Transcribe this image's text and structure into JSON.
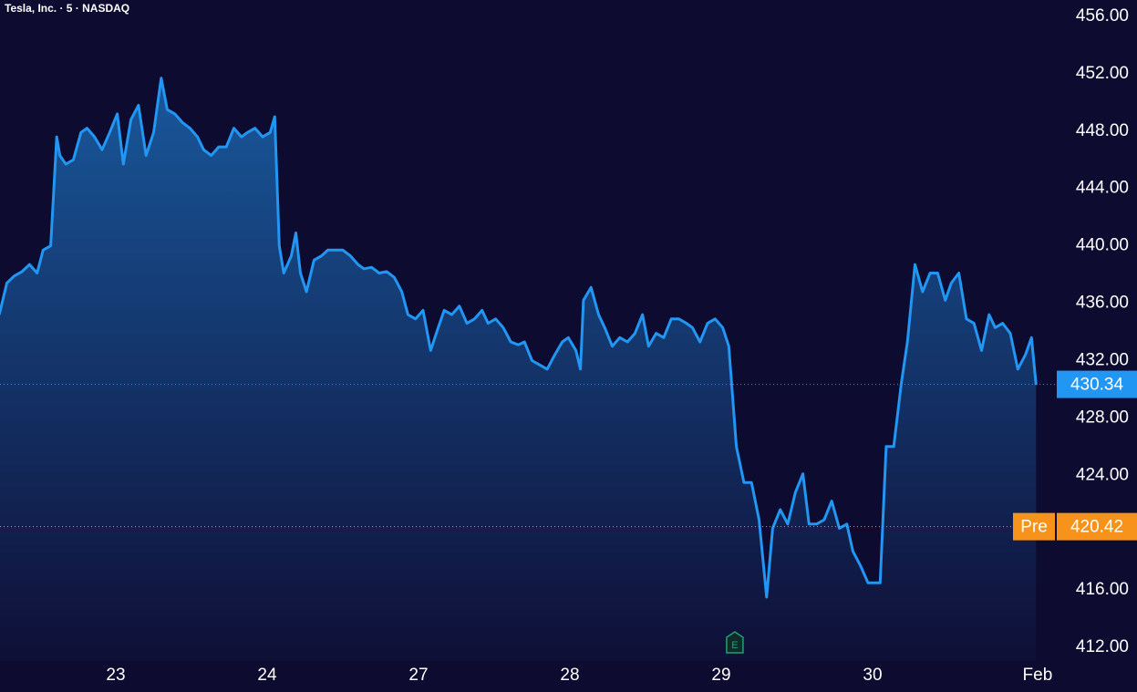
{
  "chart_data": {
    "type": "area",
    "title": "Tesla, Inc. · 5 · NASDAQ",
    "x": [
      -0.77,
      -0.72,
      -0.67,
      -0.62,
      -0.57,
      -0.52,
      -0.48,
      -0.43,
      -0.39,
      -0.37,
      -0.33,
      -0.28,
      -0.23,
      -0.19,
      -0.14,
      -0.09,
      -0.04,
      0.01,
      0.05,
      0.1,
      0.15,
      0.2,
      0.25,
      0.3,
      0.34,
      0.39,
      0.44,
      0.49,
      0.54,
      0.58,
      0.63,
      0.68,
      0.73,
      0.78,
      0.83,
      0.87,
      0.92,
      0.97,
      1.02,
      1.05,
      1.08,
      1.11,
      1.16,
      1.19,
      1.22,
      1.26,
      1.31,
      1.36,
      1.4,
      1.45,
      1.5,
      1.55,
      1.6,
      1.64,
      1.69,
      1.74,
      1.79,
      1.84,
      1.89,
      1.93,
      1.98,
      2.03,
      2.08,
      2.13,
      2.17,
      2.22,
      2.27,
      2.32,
      2.37,
      2.42,
      2.46,
      2.51,
      2.56,
      2.61,
      2.66,
      2.7,
      2.75,
      2.8,
      2.85,
      2.9,
      2.95,
      2.99,
      3.04,
      3.07,
      3.09,
      3.14,
      3.19,
      3.23,
      3.28,
      3.33,
      3.38,
      3.43,
      3.48,
      3.52,
      3.57,
      3.62,
      3.67,
      3.72,
      3.77,
      3.81,
      3.86,
      3.91,
      3.96,
      4.01,
      4.05,
      4.1,
      4.15,
      4.2,
      4.25,
      4.3,
      4.34,
      4.39,
      4.44,
      4.49,
      4.54,
      4.58,
      4.63,
      4.68,
      4.73,
      4.78,
      4.83,
      4.87,
      4.92,
      4.97,
      5.02,
      5.05,
      5.09,
      5.14,
      5.19,
      5.23,
      5.28,
      5.33,
      5.38,
      5.43,
      5.48,
      5.52,
      5.57,
      5.62,
      5.67,
      5.72,
      5.77,
      5.81,
      5.86,
      5.91,
      5.96,
      6.01,
      6.05,
      6.08
    ],
    "series": [
      {
        "color": "#2196f3",
        "values": [
          435.2,
          437.4,
          437.9,
          438.2,
          438.7,
          438.1,
          439.7,
          440,
          447.6,
          446.3,
          445.7,
          446,
          447.9,
          448.2,
          447.6,
          446.7,
          447.9,
          449.2,
          445.7,
          448.8,
          449.8,
          446.3,
          447.9,
          451.7,
          449.5,
          449.2,
          448.6,
          448.2,
          447.6,
          446.7,
          446.3,
          446.9,
          446.9,
          448.2,
          447.6,
          447.9,
          448.2,
          447.6,
          447.9,
          449.0,
          440,
          438.1,
          439.3,
          440.9,
          438.1,
          436.8,
          439,
          439.3,
          439.7,
          439.7,
          439.7,
          439.3,
          438.7,
          438.4,
          438.5,
          438.1,
          438.2,
          437.8,
          436.8,
          435.2,
          434.9,
          435.5,
          432.7,
          434.3,
          435.5,
          435.2,
          435.8,
          434.6,
          434.9,
          435.5,
          434.6,
          434.9,
          434.3,
          433.3,
          433.1,
          433.3,
          432.0,
          431.7,
          431.4,
          432.4,
          433.3,
          433.6,
          432.7,
          431.4,
          436.2,
          437.1,
          435.2,
          434.3,
          433,
          433.6,
          433.3,
          433.9,
          435.2,
          433,
          433.9,
          433.6,
          434.9,
          434.9,
          434.6,
          434.3,
          433.3,
          434.6,
          434.9,
          434.3,
          433,
          426,
          423.5,
          423.5,
          420.9,
          415.5,
          420.3,
          421.6,
          420.6,
          422.8,
          424.1,
          420.6,
          420.6,
          420.9,
          422.2,
          420.3,
          420.6,
          418.7,
          417.7,
          416.5,
          416.5,
          416.5,
          426,
          426,
          430.4,
          433.3,
          438.7,
          436.8,
          438.1,
          438.1,
          436.2,
          437.4,
          438.1,
          434.9,
          434.6,
          432.7,
          435.2,
          434.3,
          434.6,
          433.9,
          431.4,
          432.4,
          433.6,
          430.3
        ]
      }
    ],
    "last_price": {
      "value": 430.34,
      "color": "#2196f3"
    },
    "premarket": {
      "label": "Pre",
      "value": 420.42,
      "color": "#f7931a"
    },
    "events": [
      {
        "x": 4.09,
        "label": "E"
      }
    ],
    "xlim": [
      -0.765,
      6.205
    ],
    "ylim": [
      411.05,
      457.14
    ],
    "xticks": [
      {
        "value": 0,
        "label": "23"
      },
      {
        "value": 1,
        "label": "24"
      },
      {
        "value": 2,
        "label": "27"
      },
      {
        "value": 3,
        "label": "28"
      },
      {
        "value": 4,
        "label": "29"
      },
      {
        "value": 5,
        "label": "30"
      },
      {
        "value": 6.09,
        "label": "Feb"
      }
    ],
    "yticks": [
      {
        "value": 412,
        "label": "412.00"
      },
      {
        "value": 416,
        "label": "416.00"
      },
      {
        "value": 420,
        "label": "420.00"
      },
      {
        "value": 424,
        "label": "424.00"
      },
      {
        "value": 428,
        "label": "428.00"
      },
      {
        "value": 432,
        "label": "432.00"
      },
      {
        "value": 436,
        "label": "436.00"
      },
      {
        "value": 440,
        "label": "440.00"
      },
      {
        "value": 444,
        "label": "444.00"
      },
      {
        "value": 448,
        "label": "448.00"
      },
      {
        "value": 452,
        "label": "452.00"
      },
      {
        "value": 456,
        "label": "456.00"
      }
    ]
  }
}
